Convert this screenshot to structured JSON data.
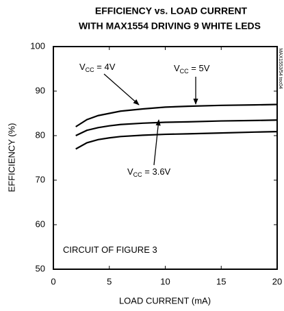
{
  "chart_data": {
    "type": "line",
    "title": [
      "EFFICIENCY vs. LOAD CURRENT",
      "WITH MAX1554 DRIVING 9 WHITE LEDS"
    ],
    "xlabel": "LOAD CURRENT (mA)",
    "ylabel": "EFFICIENCY (%)",
    "side_note": "MAX1553/54 toc04",
    "x": [
      2,
      3,
      4,
      5,
      6,
      8,
      10,
      12,
      15,
      18,
      20
    ],
    "series": [
      {
        "color": "#000000",
        "values": [
          82,
          83.6,
          84.5,
          85,
          85.5,
          86,
          86.4,
          86.6,
          86.8,
          86.9,
          87
        ]
      },
      {
        "color": "#000000",
        "values": [
          80,
          81.2,
          81.8,
          82.2,
          82.5,
          82.8,
          83,
          83.1,
          83.3,
          83.4,
          83.5
        ]
      },
      {
        "color": "#000000",
        "values": [
          77,
          78.4,
          79.1,
          79.5,
          79.8,
          80.1,
          80.3,
          80.4,
          80.6,
          80.8,
          80.9
        ]
      }
    ],
    "annotations": [
      [
        "V",
        "CC",
        " = 4V"
      ],
      [
        "V",
        "CC",
        " = 5V"
      ],
      [
        "V",
        "CC",
        " = 3.6V"
      ],
      [
        "CIRCUIT OF FIGURE 3"
      ]
    ],
    "xlim": [
      0,
      20
    ],
    "xticks": [
      0,
      5,
      10,
      15,
      20
    ],
    "ylim": [
      50,
      100
    ],
    "yticks": [
      50,
      60,
      70,
      80,
      90,
      100
    ],
    "grid": false
  }
}
